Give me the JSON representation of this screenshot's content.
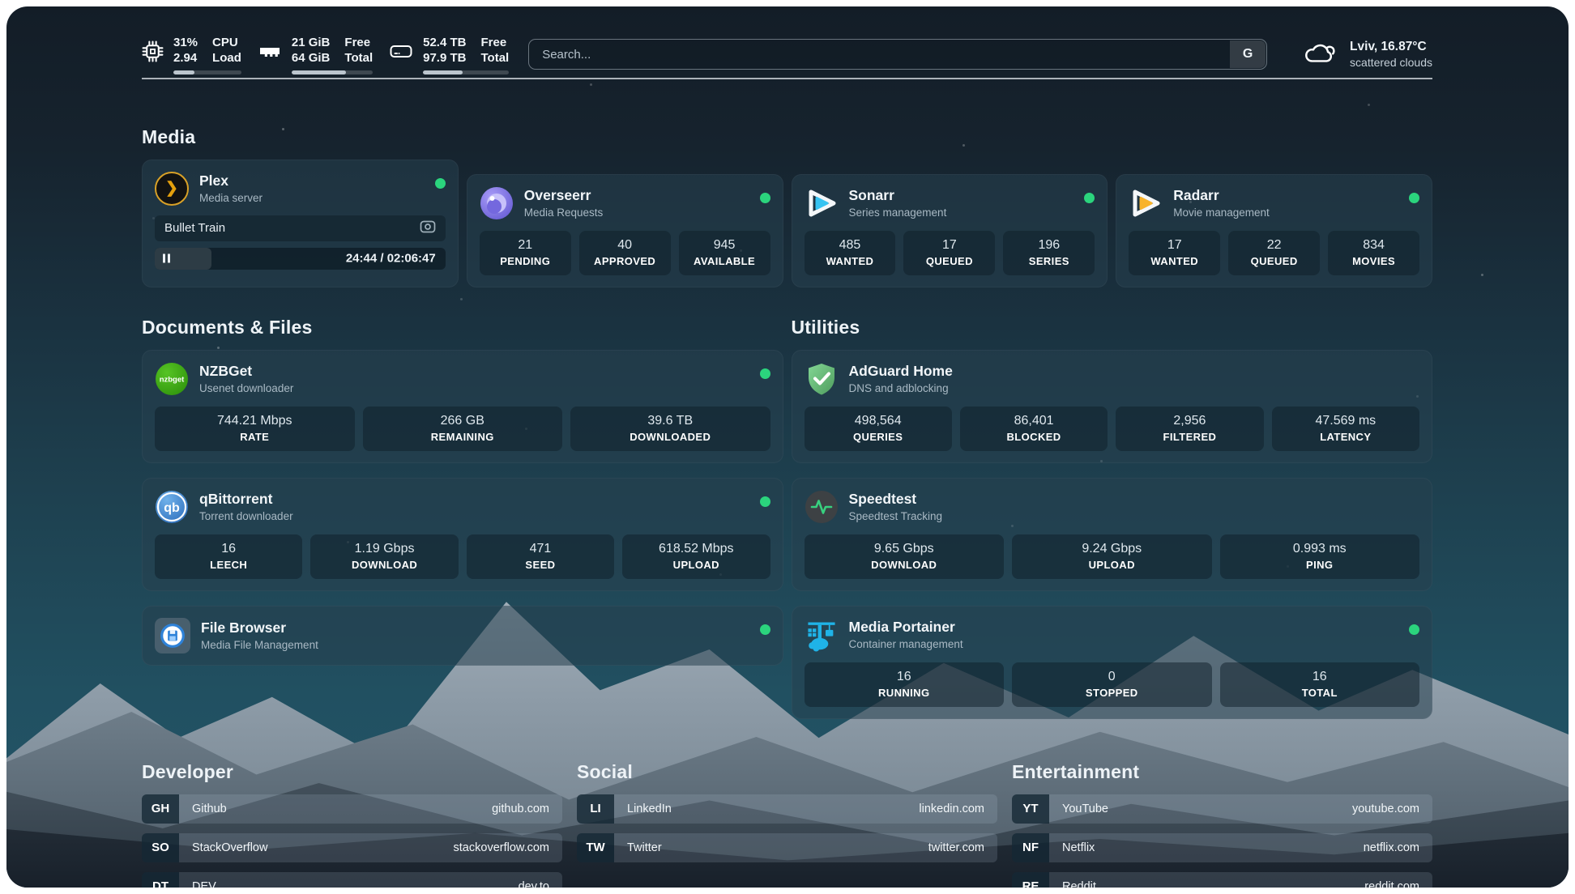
{
  "topbar": {
    "cpu": {
      "usage": "31%",
      "load": "2.94",
      "label_top": "CPU",
      "label_bottom": "Load",
      "bar_percent": 31
    },
    "memory": {
      "free": "21 GiB",
      "total": "64 GiB",
      "label_top": "Free",
      "label_bottom": "Total",
      "bar_percent": 67
    },
    "storage": {
      "free": "52.4 TB",
      "total": "97.9 TB",
      "label_top": "Free",
      "label_bottom": "Total",
      "bar_percent": 46
    },
    "search": {
      "placeholder": "Search...",
      "engine_button": "G"
    },
    "weather": {
      "location": "Lviv, 16.87°C",
      "condition": "scattered clouds"
    }
  },
  "sections": {
    "media": {
      "title": "Media",
      "apps": [
        {
          "name": "Plex",
          "description": "Media server",
          "status": "online",
          "now_playing": {
            "title": "Bullet Train",
            "time_display": "24:44 / 02:06:47",
            "progress_percent": 19.5
          }
        },
        {
          "name": "Overseerr",
          "description": "Media Requests",
          "status": "online",
          "stats": [
            {
              "value": "21",
              "label": "PENDING"
            },
            {
              "value": "40",
              "label": "APPROVED"
            },
            {
              "value": "945",
              "label": "AVAILABLE"
            }
          ]
        },
        {
          "name": "Sonarr",
          "description": "Series management",
          "status": "online",
          "stats": [
            {
              "value": "485",
              "label": "WANTED"
            },
            {
              "value": "17",
              "label": "QUEUED"
            },
            {
              "value": "196",
              "label": "SERIES"
            }
          ]
        },
        {
          "name": "Radarr",
          "description": "Movie management",
          "status": "online",
          "stats": [
            {
              "value": "17",
              "label": "WANTED"
            },
            {
              "value": "22",
              "label": "QUEUED"
            },
            {
              "value": "834",
              "label": "MOVIES"
            }
          ]
        }
      ]
    },
    "documents": {
      "title": "Documents & Files",
      "apps": [
        {
          "name": "NZBGet",
          "description": "Usenet downloader",
          "status": "online",
          "stats": [
            {
              "value": "744.21 Mbps",
              "label": "RATE"
            },
            {
              "value": "266 GB",
              "label": "REMAINING"
            },
            {
              "value": "39.6 TB",
              "label": "DOWNLOADED"
            }
          ]
        },
        {
          "name": "qBittorrent",
          "description": "Torrent downloader",
          "status": "online",
          "stats": [
            {
              "value": "16",
              "label": "LEECH"
            },
            {
              "value": "1.19 Gbps",
              "label": "DOWNLOAD"
            },
            {
              "value": "471",
              "label": "SEED"
            },
            {
              "value": "618.52 Mbps",
              "label": "UPLOAD"
            }
          ]
        },
        {
          "name": "File Browser",
          "description": "Media File Management",
          "status": "online"
        }
      ]
    },
    "utilities": {
      "title": "Utilities",
      "apps": [
        {
          "name": "AdGuard Home",
          "description": "DNS and adblocking",
          "stats": [
            {
              "value": "498,564",
              "label": "QUERIES"
            },
            {
              "value": "86,401",
              "label": "BLOCKED"
            },
            {
              "value": "2,956",
              "label": "FILTERED"
            },
            {
              "value": "47.569 ms",
              "label": "LATENCY"
            }
          ]
        },
        {
          "name": "Speedtest",
          "description": "Speedtest Tracking",
          "stats": [
            {
              "value": "9.65 Gbps",
              "label": "DOWNLOAD"
            },
            {
              "value": "9.24 Gbps",
              "label": "UPLOAD"
            },
            {
              "value": "0.993 ms",
              "label": "PING"
            }
          ]
        },
        {
          "name": "Media Portainer",
          "description": "Container management",
          "status": "online",
          "stats": [
            {
              "value": "16",
              "label": "RUNNING"
            },
            {
              "value": "0",
              "label": "STOPPED"
            },
            {
              "value": "16",
              "label": "TOTAL"
            }
          ]
        }
      ]
    },
    "developer": {
      "title": "Developer",
      "links": [
        {
          "abbr": "GH",
          "name": "Github",
          "url": "github.com"
        },
        {
          "abbr": "SO",
          "name": "StackOverflow",
          "url": "stackoverflow.com"
        },
        {
          "abbr": "DT",
          "name": "DEV",
          "url": "dev.to"
        }
      ]
    },
    "social": {
      "title": "Social",
      "links": [
        {
          "abbr": "LI",
          "name": "LinkedIn",
          "url": "linkedin.com"
        },
        {
          "abbr": "TW",
          "name": "Twitter",
          "url": "twitter.com"
        }
      ]
    },
    "entertainment": {
      "title": "Entertainment",
      "links": [
        {
          "abbr": "YT",
          "name": "YouTube",
          "url": "youtube.com"
        },
        {
          "abbr": "NF",
          "name": "Netflix",
          "url": "netflix.com"
        },
        {
          "abbr": "RE",
          "name": "Reddit",
          "url": "reddit.com"
        }
      ]
    }
  },
  "colors": {
    "status_online": "#2bd47d",
    "plex_amber": "#e5a00d",
    "overseerr_purple": "#7b6ef0",
    "sonarr_blue": "#36c3f1",
    "radarr_yellow": "#f8b32a",
    "nzbget_green": "#3aa512",
    "qbittorrent_blue": "#3f82c9",
    "adguard_green": "#67b279",
    "speedtest_green": "#38d07f",
    "portainer_blue": "#1fb3e8",
    "filebrowser_blue": "#2e82d8"
  }
}
